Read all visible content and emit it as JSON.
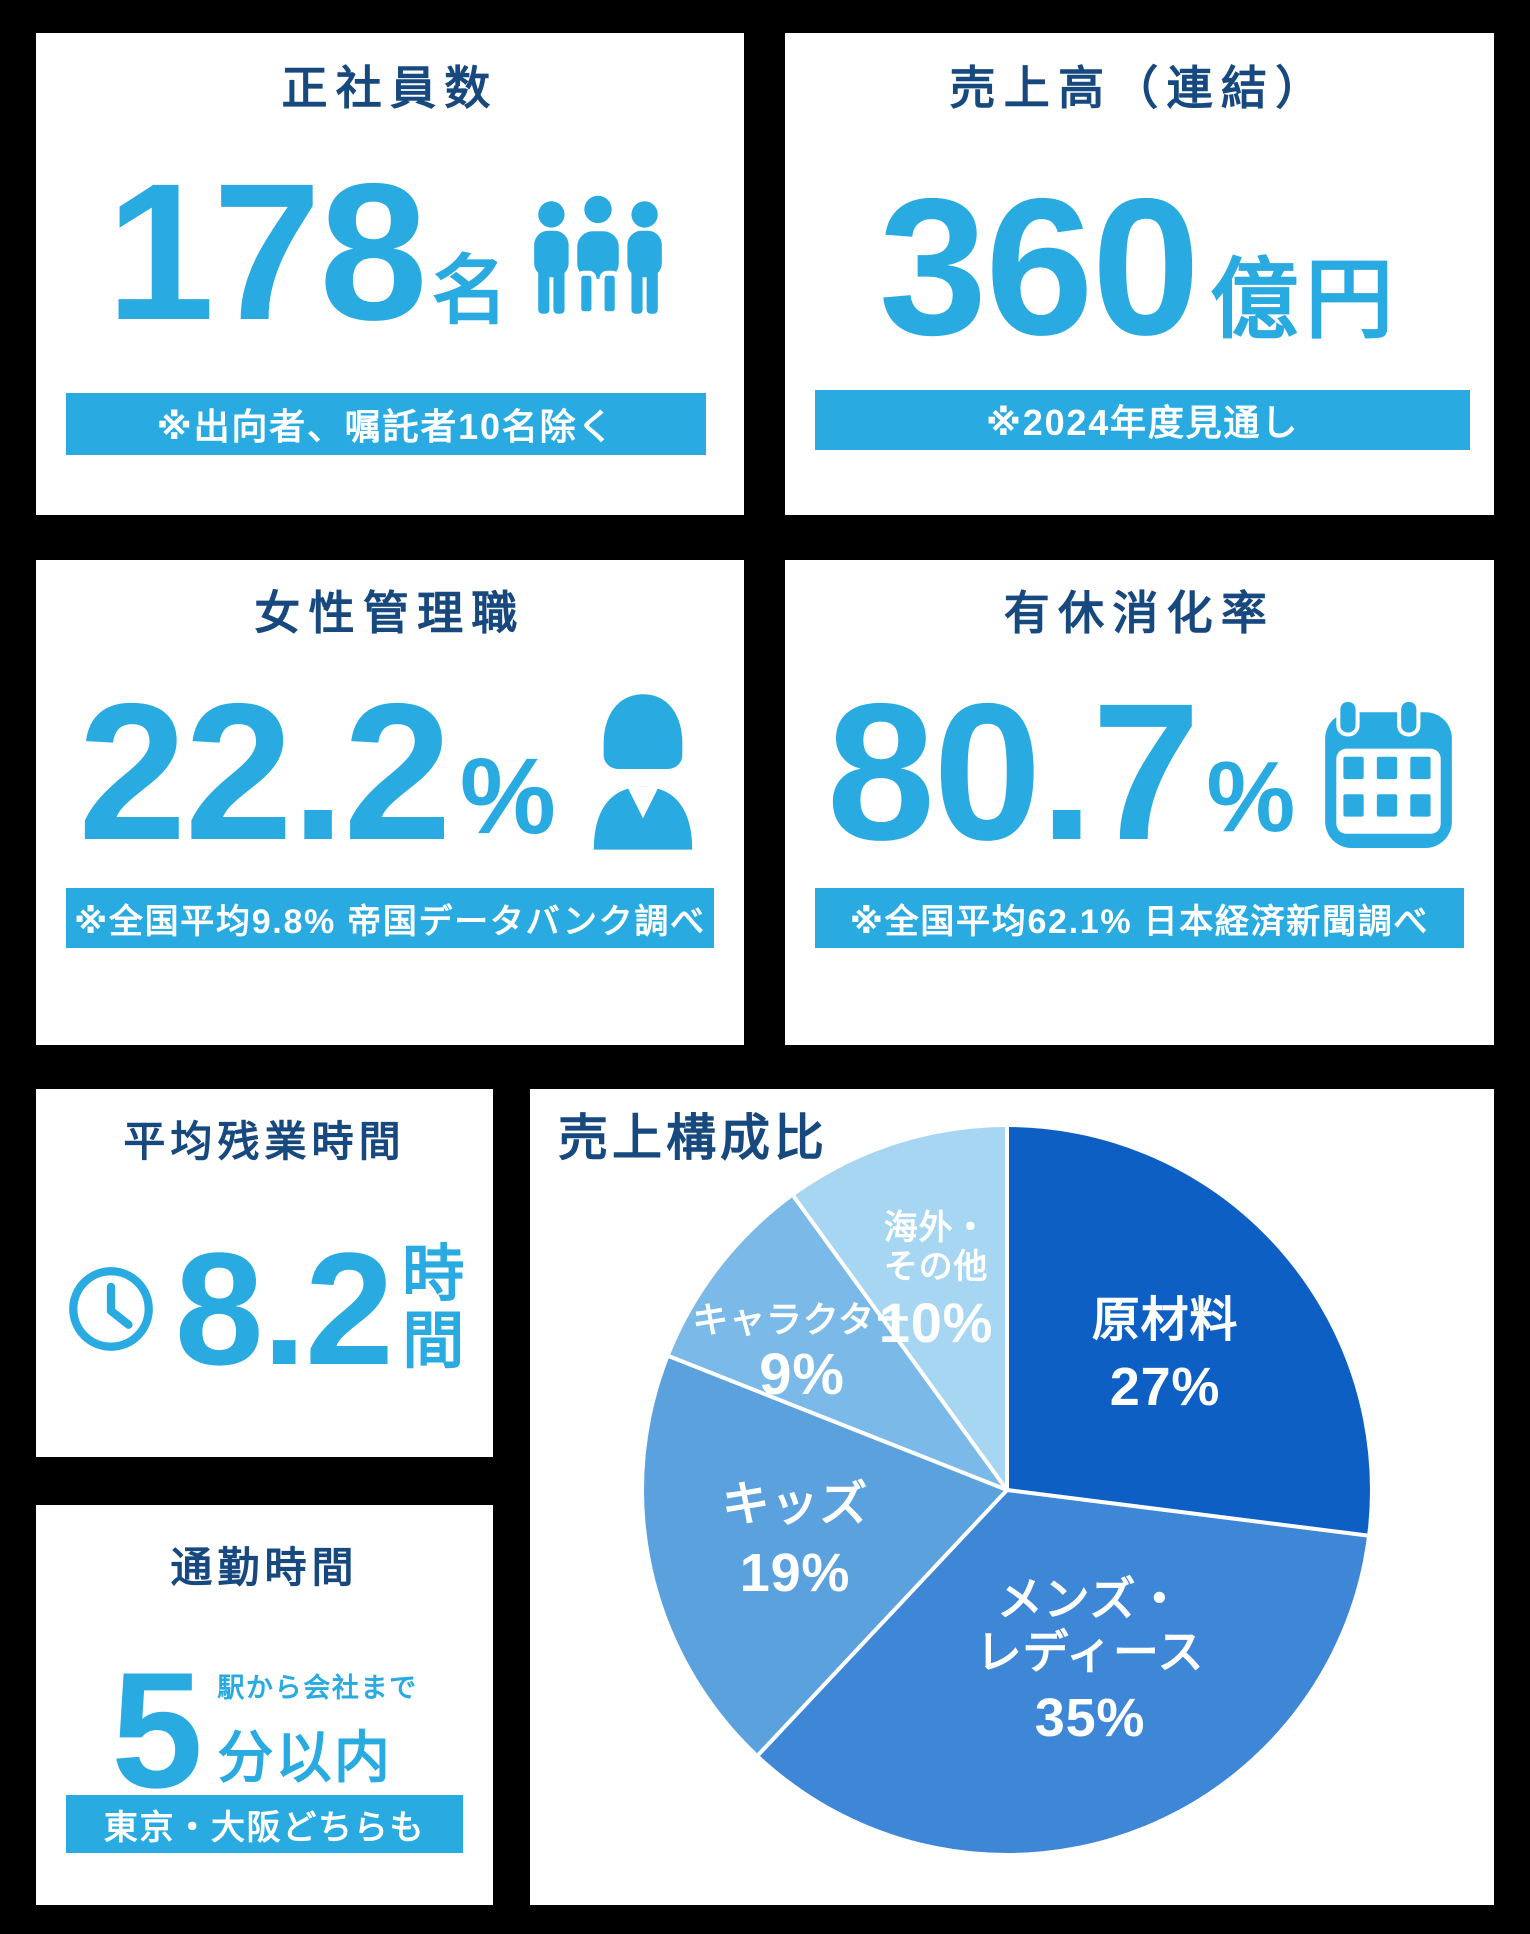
{
  "colors": {
    "page_bg": "#000000",
    "card_bg": "#ffffff",
    "navy": "#17497f",
    "accent": "#29abe2"
  },
  "cards": {
    "employees": {
      "title": "正社員数",
      "value": "178",
      "unit": "名",
      "icon": "people-icon",
      "note": "※出向者、嘱託者10名除く"
    },
    "sales": {
      "title": "売上高（連結）",
      "value": "360",
      "unit": "億円",
      "note": "※2024年度見通し"
    },
    "female_managers": {
      "title": "女性管理職",
      "value": "22.2",
      "unit": "%",
      "icon": "businesswoman-icon",
      "note": "※全国平均9.8% 帝国データバンク調べ"
    },
    "paid_leave": {
      "title": "有休消化率",
      "value": "80.7",
      "unit": "%",
      "icon": "calendar-icon",
      "note": "※全国平均62.1% 日本経済新聞調べ"
    },
    "overtime": {
      "title": "平均残業時間",
      "icon": "clock-icon",
      "value": "8.2",
      "unit_chars": [
        "時",
        "間"
      ]
    },
    "commute": {
      "title": "通勤時間",
      "value": "5",
      "annotation": "駅から会社まで",
      "unit": "分以内",
      "note": "東京・大阪どちらも"
    }
  },
  "chart_data": {
    "type": "pie",
    "title": "売上構成比",
    "direction": "clockwise",
    "start_angle_deg": 0,
    "unit": "%",
    "slices": [
      {
        "label": "原材料",
        "value": 27,
        "pct_label": "27%",
        "color": "#0d5fc4",
        "lines": [
          "原材料"
        ]
      },
      {
        "label": "メンズ・レディース",
        "value": 35,
        "pct_label": "35%",
        "color": "#3e86d6",
        "lines": [
          "メンズ・",
          "レディース"
        ]
      },
      {
        "label": "キッズ",
        "value": 19,
        "pct_label": "19%",
        "color": "#5aa1de",
        "lines": [
          "キッズ"
        ]
      },
      {
        "label": "キャラクター",
        "value": 9,
        "pct_label": "9%",
        "color": "#7bbae8",
        "lines": [
          "キャラクター"
        ]
      },
      {
        "label": "海外・その他",
        "value": 10,
        "pct_label": "10%",
        "color": "#a6d6f2",
        "lines": [
          "海外・",
          "その他"
        ]
      }
    ]
  }
}
